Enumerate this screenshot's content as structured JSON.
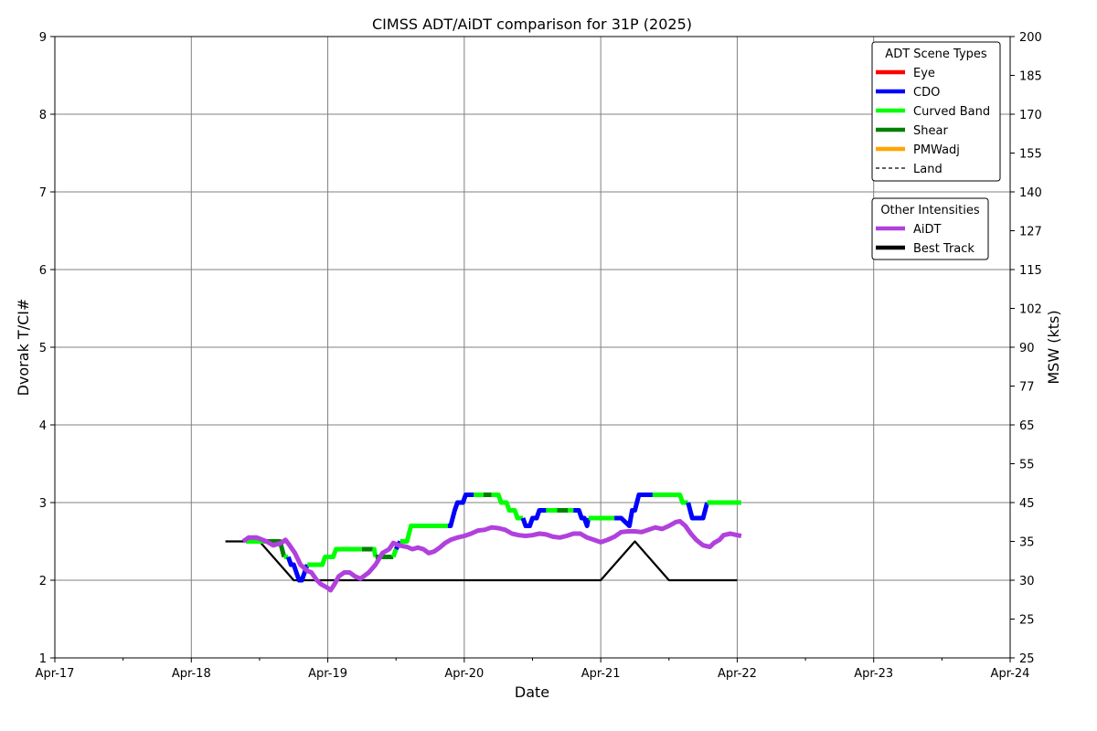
{
  "chart_data": {
    "type": "line",
    "title": "CIMSS ADT/AiDT comparison for 31P (2025)",
    "xlabel": "Date",
    "ylabel": "Dvorak T/CI#",
    "y2label": "MSW (kts)",
    "x_range_days": [
      17,
      24
    ],
    "x_ticks": [
      {
        "day": 17,
        "label": "Apr-17"
      },
      {
        "day": 18,
        "label": "Apr-18"
      },
      {
        "day": 19,
        "label": "Apr-19"
      },
      {
        "day": 20,
        "label": "Apr-20"
      },
      {
        "day": 21,
        "label": "Apr-21"
      },
      {
        "day": 22,
        "label": "Apr-22"
      },
      {
        "day": 23,
        "label": "Apr-23"
      },
      {
        "day": 24,
        "label": "Apr-24"
      }
    ],
    "ylim": [
      1,
      9
    ],
    "y_ticks": [
      "1",
      "2",
      "3",
      "4",
      "5",
      "6",
      "7",
      "8",
      "9"
    ],
    "y2_ticks": [
      {
        "t": 1.0,
        "label": "25"
      },
      {
        "t": 1.5,
        "label": "25"
      },
      {
        "t": 2.0,
        "label": "30"
      },
      {
        "t": 2.5,
        "label": "35"
      },
      {
        "t": 3.0,
        "label": "45"
      },
      {
        "t": 3.5,
        "label": "55"
      },
      {
        "t": 4.0,
        "label": "65"
      },
      {
        "t": 4.5,
        "label": "77"
      },
      {
        "t": 5.0,
        "label": "90"
      },
      {
        "t": 5.5,
        "label": "102"
      },
      {
        "t": 6.0,
        "label": "115"
      },
      {
        "t": 6.5,
        "label": "127"
      },
      {
        "t": 7.0,
        "label": "140"
      },
      {
        "t": 7.5,
        "label": "155"
      },
      {
        "t": 8.0,
        "label": "170"
      },
      {
        "t": 8.5,
        "label": "185"
      },
      {
        "t": 9.0,
        "label": "200"
      }
    ],
    "grid": true,
    "legends": [
      {
        "title": "ADT Scene Types",
        "placement": "top-right",
        "entries": [
          {
            "label": "Eye",
            "color": "#ff0000",
            "style": "solid"
          },
          {
            "label": "CDO",
            "color": "#0000ff",
            "style": "solid"
          },
          {
            "label": "Curved Band",
            "color": "#00ff00",
            "style": "solid"
          },
          {
            "label": "Shear",
            "color": "#008000",
            "style": "solid"
          },
          {
            "label": "PMWadj",
            "color": "#ffa500",
            "style": "solid"
          },
          {
            "label": "Land",
            "color": "#000000",
            "style": "dashed"
          }
        ]
      },
      {
        "title": "Other Intensities",
        "placement": "top-right",
        "entries": [
          {
            "label": "AiDT",
            "color": "#b041dd",
            "style": "solid"
          },
          {
            "label": "Best Track",
            "color": "#000000",
            "style": "solid"
          }
        ]
      }
    ],
    "adt_segments": [
      {
        "scene": "Curved Band",
        "color": "#00ff00",
        "points": [
          [
            18.4,
            2.5
          ],
          [
            18.55,
            2.5
          ]
        ]
      },
      {
        "scene": "Shear",
        "color": "#008000",
        "points": [
          [
            18.55,
            2.5
          ],
          [
            18.65,
            2.5
          ],
          [
            18.68,
            2.3
          ]
        ]
      },
      {
        "scene": "Curved Band",
        "color": "#00ff00",
        "points": [
          [
            18.68,
            2.3
          ],
          [
            18.71,
            2.3
          ]
        ]
      },
      {
        "scene": "CDO",
        "color": "#0000ff",
        "points": [
          [
            18.71,
            2.3
          ],
          [
            18.73,
            2.2
          ],
          [
            18.75,
            2.2
          ],
          [
            18.77,
            2.1
          ],
          [
            18.79,
            2.0
          ],
          [
            18.81,
            2.0
          ],
          [
            18.83,
            2.1
          ],
          [
            18.85,
            2.2
          ]
        ]
      },
      {
        "scene": "Curved Band",
        "color": "#00ff00",
        "points": [
          [
            18.85,
            2.2
          ],
          [
            18.96,
            2.2
          ],
          [
            18.98,
            2.3
          ],
          [
            19.04,
            2.3
          ],
          [
            19.06,
            2.4
          ],
          [
            19.25,
            2.4
          ]
        ]
      },
      {
        "scene": "Shear",
        "color": "#008000",
        "points": [
          [
            19.25,
            2.4
          ],
          [
            19.33,
            2.4
          ]
        ]
      },
      {
        "scene": "Curved Band",
        "color": "#00ff00",
        "points": [
          [
            19.33,
            2.4
          ],
          [
            19.34,
            2.4
          ],
          [
            19.35,
            2.3
          ]
        ]
      },
      {
        "scene": "Shear",
        "color": "#008000",
        "points": [
          [
            19.35,
            2.3
          ],
          [
            19.48,
            2.3
          ]
        ]
      },
      {
        "scene": "Curved Band",
        "color": "#00ff00",
        "points": [
          [
            19.48,
            2.3
          ],
          [
            19.5,
            2.4
          ]
        ]
      },
      {
        "scene": "CDO",
        "color": "#0000ff",
        "points": [
          [
            19.5,
            2.4
          ],
          [
            19.53,
            2.5
          ]
        ]
      },
      {
        "scene": "Curved Band",
        "color": "#00ff00",
        "points": [
          [
            19.53,
            2.5
          ],
          [
            19.58,
            2.5
          ],
          [
            19.61,
            2.7
          ],
          [
            19.88,
            2.7
          ]
        ]
      },
      {
        "scene": "CDO",
        "color": "#0000ff",
        "points": [
          [
            19.88,
            2.7
          ],
          [
            19.9,
            2.7
          ],
          [
            19.93,
            2.9
          ],
          [
            19.95,
            3.0
          ],
          [
            19.99,
            3.0
          ],
          [
            20.01,
            3.1
          ],
          [
            20.07,
            3.1
          ]
        ]
      },
      {
        "scene": "Curved Band",
        "color": "#00ff00",
        "points": [
          [
            20.07,
            3.1
          ],
          [
            20.14,
            3.1
          ]
        ]
      },
      {
        "scene": "Shear",
        "color": "#008000",
        "points": [
          [
            20.14,
            3.1
          ],
          [
            20.2,
            3.1
          ]
        ]
      },
      {
        "scene": "Curved Band",
        "color": "#00ff00",
        "points": [
          [
            20.2,
            3.1
          ],
          [
            20.25,
            3.1
          ],
          [
            20.27,
            3.0
          ],
          [
            20.31,
            3.0
          ],
          [
            20.33,
            2.9
          ],
          [
            20.37,
            2.9
          ],
          [
            20.39,
            2.8
          ],
          [
            20.43,
            2.8
          ]
        ]
      },
      {
        "scene": "CDO",
        "color": "#0000ff",
        "points": [
          [
            20.43,
            2.8
          ],
          [
            20.45,
            2.7
          ],
          [
            20.48,
            2.7
          ],
          [
            20.5,
            2.8
          ],
          [
            20.53,
            2.8
          ],
          [
            20.55,
            2.9
          ],
          [
            20.6,
            2.9
          ]
        ]
      },
      {
        "scene": "Curved Band",
        "color": "#00ff00",
        "points": [
          [
            20.6,
            2.9
          ],
          [
            20.68,
            2.9
          ]
        ]
      },
      {
        "scene": "Shear",
        "color": "#008000",
        "points": [
          [
            20.68,
            2.9
          ],
          [
            20.76,
            2.9
          ]
        ]
      },
      {
        "scene": "Curved Band",
        "color": "#00ff00",
        "points": [
          [
            20.76,
            2.9
          ],
          [
            20.8,
            2.9
          ]
        ]
      },
      {
        "scene": "CDO",
        "color": "#0000ff",
        "points": [
          [
            20.8,
            2.9
          ],
          [
            20.84,
            2.9
          ],
          [
            20.86,
            2.8
          ],
          [
            20.88,
            2.8
          ],
          [
            20.9,
            2.7
          ],
          [
            20.91,
            2.8
          ]
        ]
      },
      {
        "scene": "Curved Band",
        "color": "#00ff00",
        "points": [
          [
            20.91,
            2.8
          ],
          [
            21.08,
            2.8
          ]
        ]
      },
      {
        "scene": "Curved Band",
        "color": "#00ff00",
        "points": [
          [
            21.08,
            2.8
          ],
          [
            21.1,
            2.8
          ]
        ]
      },
      {
        "scene": "CDO",
        "color": "#0000ff",
        "points": [
          [
            21.1,
            2.8
          ],
          [
            21.15,
            2.8
          ],
          [
            21.18,
            2.75
          ],
          [
            21.21,
            2.7
          ],
          [
            21.23,
            2.9
          ],
          [
            21.25,
            2.9
          ],
          [
            21.28,
            3.1
          ],
          [
            21.38,
            3.1
          ]
        ]
      },
      {
        "scene": "Curved Band",
        "color": "#00ff00",
        "points": [
          [
            21.38,
            3.1
          ],
          [
            21.58,
            3.1
          ],
          [
            21.6,
            3.0
          ],
          [
            21.64,
            3.0
          ]
        ]
      },
      {
        "scene": "CDO",
        "color": "#0000ff",
        "points": [
          [
            21.64,
            3.0
          ],
          [
            21.67,
            2.8
          ],
          [
            21.75,
            2.8
          ],
          [
            21.78,
            3.0
          ]
        ]
      },
      {
        "scene": "Curved Band",
        "color": "#00ff00",
        "points": [
          [
            21.78,
            3.0
          ],
          [
            22.03,
            3.0
          ]
        ]
      }
    ],
    "series": [
      {
        "name": "AiDT",
        "color": "#b041dd",
        "points": [
          [
            18.38,
            2.5
          ],
          [
            18.42,
            2.55
          ],
          [
            18.48,
            2.55
          ],
          [
            18.55,
            2.5
          ],
          [
            18.6,
            2.45
          ],
          [
            18.66,
            2.48
          ],
          [
            18.69,
            2.52
          ],
          [
            18.72,
            2.45
          ],
          [
            18.76,
            2.35
          ],
          [
            18.8,
            2.2
          ],
          [
            18.85,
            2.12
          ],
          [
            18.88,
            2.1
          ],
          [
            18.92,
            2.0
          ],
          [
            18.95,
            1.95
          ],
          [
            19.0,
            1.9
          ],
          [
            19.02,
            1.87
          ],
          [
            19.05,
            1.95
          ],
          [
            19.08,
            2.05
          ],
          [
            19.12,
            2.1
          ],
          [
            19.16,
            2.1
          ],
          [
            19.2,
            2.05
          ],
          [
            19.24,
            2.02
          ],
          [
            19.3,
            2.1
          ],
          [
            19.35,
            2.2
          ],
          [
            19.4,
            2.35
          ],
          [
            19.45,
            2.4
          ],
          [
            19.48,
            2.48
          ],
          [
            19.52,
            2.45
          ],
          [
            19.58,
            2.43
          ],
          [
            19.62,
            2.4
          ],
          [
            19.66,
            2.42
          ],
          [
            19.7,
            2.4
          ],
          [
            19.74,
            2.35
          ],
          [
            19.78,
            2.37
          ],
          [
            19.82,
            2.42
          ],
          [
            19.86,
            2.48
          ],
          [
            19.9,
            2.52
          ],
          [
            19.95,
            2.55
          ],
          [
            20.0,
            2.57
          ],
          [
            20.05,
            2.6
          ],
          [
            20.1,
            2.64
          ],
          [
            20.15,
            2.65
          ],
          [
            20.2,
            2.68
          ],
          [
            20.25,
            2.67
          ],
          [
            20.3,
            2.65
          ],
          [
            20.35,
            2.6
          ],
          [
            20.4,
            2.58
          ],
          [
            20.45,
            2.57
          ],
          [
            20.5,
            2.58
          ],
          [
            20.55,
            2.6
          ],
          [
            20.6,
            2.59
          ],
          [
            20.65,
            2.56
          ],
          [
            20.7,
            2.55
          ],
          [
            20.75,
            2.57
          ],
          [
            20.8,
            2.6
          ],
          [
            20.85,
            2.6
          ],
          [
            20.9,
            2.55
          ],
          [
            20.95,
            2.52
          ],
          [
            21.0,
            2.49
          ],
          [
            21.05,
            2.52
          ],
          [
            21.1,
            2.56
          ],
          [
            21.15,
            2.62
          ],
          [
            21.2,
            2.63
          ],
          [
            21.25,
            2.63
          ],
          [
            21.3,
            2.62
          ],
          [
            21.35,
            2.65
          ],
          [
            21.4,
            2.68
          ],
          [
            21.45,
            2.66
          ],
          [
            21.5,
            2.7
          ],
          [
            21.55,
            2.75
          ],
          [
            21.58,
            2.76
          ],
          [
            21.62,
            2.7
          ],
          [
            21.66,
            2.6
          ],
          [
            21.7,
            2.52
          ],
          [
            21.75,
            2.45
          ],
          [
            21.8,
            2.43
          ],
          [
            21.83,
            2.48
          ],
          [
            21.87,
            2.52
          ],
          [
            21.9,
            2.58
          ],
          [
            21.95,
            2.6
          ],
          [
            22.0,
            2.58
          ],
          [
            22.03,
            2.57
          ]
        ]
      },
      {
        "name": "Best Track",
        "color": "#000000",
        "points": [
          [
            18.25,
            2.5
          ],
          [
            18.5,
            2.5
          ],
          [
            18.75,
            2.0
          ],
          [
            21.0,
            2.0
          ],
          [
            21.25,
            2.5
          ],
          [
            21.5,
            2.0
          ],
          [
            22.0,
            2.0
          ]
        ]
      }
    ]
  }
}
